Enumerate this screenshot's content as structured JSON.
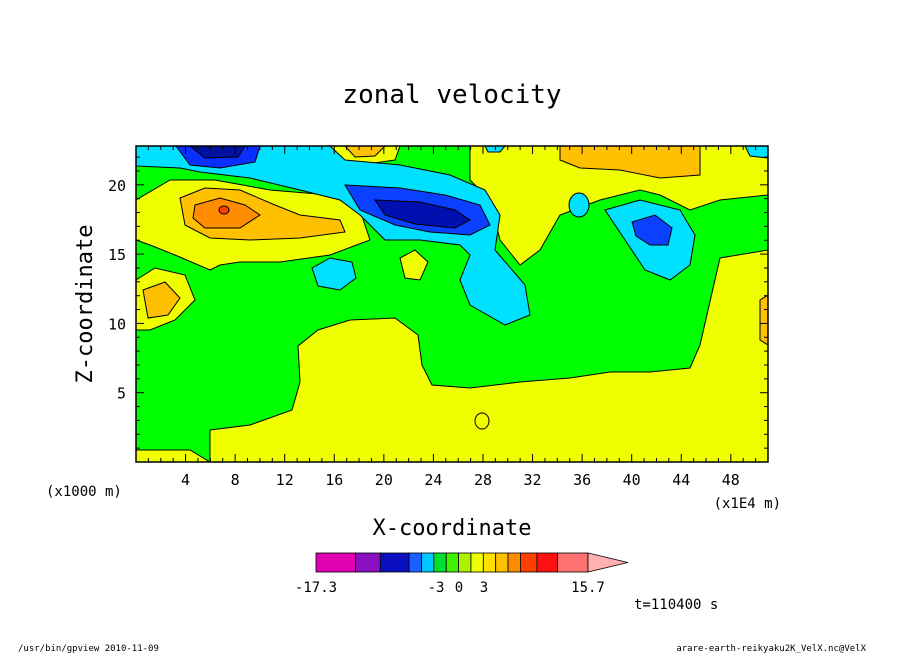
{
  "chart_data": {
    "type": "heatmap",
    "title": "zonal velocity",
    "xlabel": "X-coordinate",
    "ylabel": "Z-coordinate",
    "x_unit_left": "(x1000 m)",
    "x_unit_right": "(x1E4 m)",
    "xlim": [
      0,
      51
    ],
    "ylim": [
      0,
      22.8
    ],
    "xticks": [
      "4",
      "8",
      "12",
      "16",
      "20",
      "24",
      "28",
      "32",
      "36",
      "40",
      "44",
      "48"
    ],
    "xtick_values": [
      4,
      8,
      12,
      16,
      20,
      24,
      28,
      32,
      36,
      40,
      44,
      48
    ],
    "yticks": [
      "5",
      "10",
      "15",
      "20"
    ],
    "ytick_values": [
      5,
      10,
      15,
      20
    ],
    "grid": false,
    "colorbar": {
      "min_label": "-17.3",
      "max_label": "15.7",
      "mid_labels": [
        "-3",
        "0",
        "3"
      ],
      "levels": [
        -17.3,
        -12.5,
        -9.5,
        -6,
        -4.5,
        -3,
        -1.5,
        0,
        1.5,
        3,
        4.5,
        6,
        7.5,
        9.5,
        12,
        15.7
      ],
      "colors": [
        "#e000b0",
        "#8a10c0",
        "#0a10c0",
        "#1a60ff",
        "#00c8ff",
        "#00e030",
        "#40f000",
        "#b0f000",
        "#f0ff00",
        "#ffe000",
        "#ffc000",
        "#ff8c00",
        "#ff4000",
        "#ff1010",
        "#ff7070",
        "#ffb0b0"
      ]
    },
    "dominant_fields": [
      {
        "name": "upper-left positive max",
        "x": 7,
        "z": 18.2,
        "value": 9
      },
      {
        "name": "upper jet negative min",
        "x": 24,
        "z": 18,
        "value": -12
      },
      {
        "name": "top negative min",
        "x": 7,
        "z": 22.5,
        "value": -10
      },
      {
        "name": "right negative min",
        "x": 42,
        "z": 17,
        "value": -9
      },
      {
        "name": "lower positive plateau",
        "x": 32,
        "z": 3,
        "value": 3
      }
    ],
    "time_label": "t=110400 s"
  },
  "footer": {
    "left": "/usr/bin/gpview  2010-11-09",
    "right": "arare-earth-reikyaku2K_VelX.nc@VelX"
  }
}
